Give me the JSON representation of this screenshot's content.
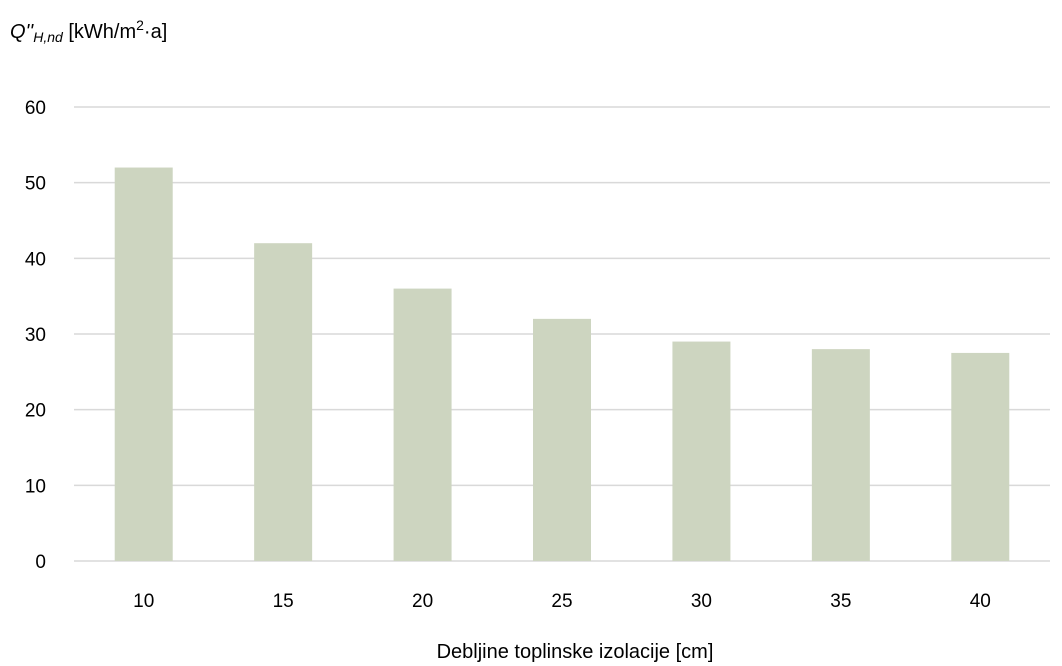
{
  "chart_data": {
    "type": "bar",
    "categories": [
      "10",
      "15",
      "20",
      "25",
      "30",
      "35",
      "40"
    ],
    "series": [
      {
        "values": [
          52,
          42,
          36,
          32,
          29,
          28,
          27.5
        ]
      }
    ],
    "ylabel": {
      "symbol": "Q''",
      "subscript": "H,nd",
      "unit_prefix": " [kWh/m",
      "unit_exponent": "2",
      "unit_suffix": "·a]"
    },
    "xlabel": "Debljine toplinske izolacije [cm]",
    "ylim": [
      0,
      60
    ],
    "yticks": [
      0,
      10,
      20,
      30,
      40,
      50,
      60
    ],
    "grid": true,
    "legend": "none",
    "bar_color": "#cdd5c0",
    "grid_color": "#d9d9d9"
  }
}
